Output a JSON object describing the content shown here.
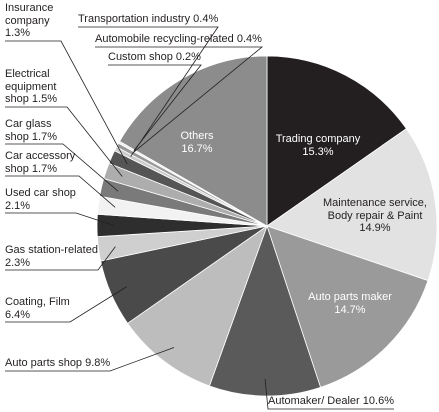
{
  "chart_data": {
    "type": "pie",
    "categories": [
      "Trading company",
      "Maintenance service, Body repair & Paint",
      "Auto parts maker",
      "Automaker/ Dealer",
      "Auto parts shop",
      "Coating, Film",
      "Gas station-related",
      "Used car shop",
      "Car accessory shop",
      "Car glass shop",
      "Electrical equipment shop",
      "Insurance company",
      "Transportation industry",
      "Automobile recycling-related",
      "Custom shop",
      "Others"
    ],
    "values": [
      15.3,
      14.9,
      14.7,
      10.6,
      9.8,
      6.4,
      2.3,
      2.1,
      1.7,
      1.7,
      1.5,
      1.3,
      0.4,
      0.4,
      0.2,
      16.7
    ],
    "value_labels": [
      "15.3%",
      "14.9%",
      "14.7%",
      "10.6%",
      "9.8%",
      "6.4%",
      "2.3%",
      "2.1%",
      "1.7%",
      "1.7%",
      "1.5%",
      "1.3%",
      "0.4%",
      "0.4%",
      "0.2%",
      "16.7%"
    ],
    "colors": [
      "#231f20",
      "#e2e2e2",
      "#9a9a9a",
      "#5a5a5a",
      "#bdbdbd",
      "#4a4a4a",
      "#cfcfcf",
      "#2e2e2e",
      "#f2f2f2",
      "#7a7a7a",
      "#adadad",
      "#555555",
      "#cccccc",
      "#999999",
      "#eeeeee",
      "#8c8c8c"
    ]
  }
}
